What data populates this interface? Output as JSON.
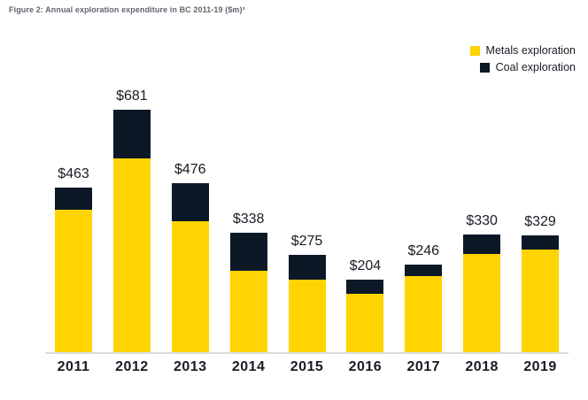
{
  "title": "Figure 2: Annual exploration expenditure in BC 2011-19 ($m)²",
  "legend": [
    {
      "label": "Metals exploration",
      "color_key": "metals"
    },
    {
      "label": "Coal exploration",
      "color_key": "coal"
    }
  ],
  "colors": {
    "metals": "#FFD400",
    "coal": "#0D1827",
    "title_gray": "#63636F",
    "dark_text": "#1A1A24",
    "axis_line": "#DCDCE0",
    "background": "#FFFFFF"
  },
  "chart_data": {
    "type": "bar",
    "stacked": true,
    "title": "Figure 2: Annual exploration expenditure in BC 2011-19 ($m)²",
    "xlabel": "",
    "ylabel": "",
    "categories": [
      "2011",
      "2012",
      "2013",
      "2014",
      "2015",
      "2016",
      "2017",
      "2018",
      "2019"
    ],
    "series": [
      {
        "name": "Metals exploration",
        "values": [
          401,
          544,
          369,
          230,
          205,
          164,
          213,
          276,
          289
        ]
      },
      {
        "name": "Coal exploration",
        "values": [
          62,
          137,
          107,
          108,
          70,
          40,
          33,
          54,
          40
        ]
      }
    ],
    "totals": [
      463,
      681,
      476,
      338,
      275,
      204,
      246,
      330,
      329
    ],
    "total_labels": [
      "$463",
      "$681",
      "$476",
      "$338",
      "$275",
      "$204",
      "$246",
      "$330",
      "$329"
    ],
    "ylim": [
      0,
      700
    ],
    "grid": false,
    "legend_position": "top-right",
    "value_prefix": "$"
  }
}
